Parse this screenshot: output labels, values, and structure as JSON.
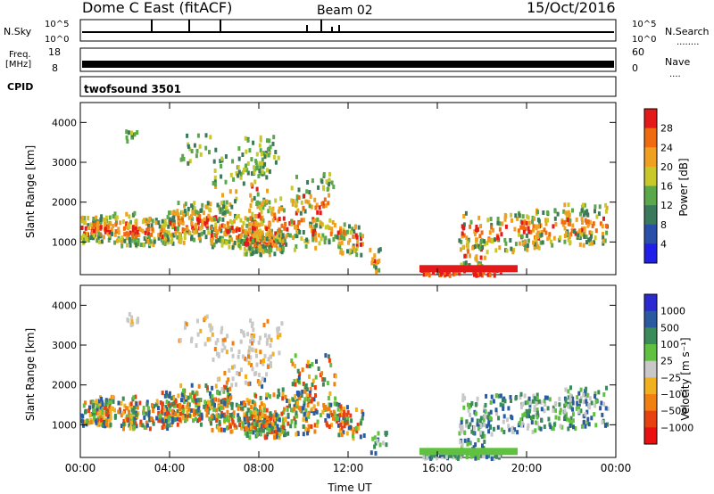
{
  "header": {
    "title": "Dome C East (fitACF)",
    "beam": "Beam 02",
    "date": "15/Oct/2016"
  },
  "panels": {
    "sky": {
      "left_label": "N.Sky",
      "left_ticks": [
        "10^5",
        "10^0"
      ],
      "right_ticks": [
        "10^5",
        "10^0"
      ],
      "right_label": "N.Search",
      "right_dots": "........"
    },
    "freq": {
      "left_label_1": "Freq.",
      "left_label_2": "[MHz]",
      "left_ticks": [
        "18",
        "8"
      ],
      "right_ticks": [
        "60",
        "0"
      ],
      "right_label": "Nave",
      "right_dots": "...."
    },
    "cpid": {
      "label": "CPID",
      "program": "twofsound 3501"
    }
  },
  "colors": {
    "power_scale": [
      "#1f1fe8",
      "#2a4fa8",
      "#3a7a5a",
      "#5aa84a",
      "#c8c82a",
      "#f0a020",
      "#f06a10",
      "#e41a1a"
    ],
    "velocity_scale": [
      "#2a2ad0",
      "#2a5aa0",
      "#3a8a5a",
      "#60c040",
      "#c8c8c8",
      "#f0b020",
      "#f08010",
      "#e84010",
      "#e81010"
    ]
  },
  "chart_data": [
    {
      "type": "heatmap",
      "name": "power",
      "xlabel": "",
      "ylabel": "Slant Range [km]",
      "x_ticks": [
        "00:00",
        "04:00",
        "08:00",
        "12:00",
        "16:00",
        "20:00",
        "00:00"
      ],
      "xlim_hours": [
        0,
        24
      ],
      "y_ticks": [
        1000,
        2000,
        3000,
        4000
      ],
      "ylim": [
        180,
        4500
      ],
      "colorbar_label": "Power [dB]",
      "colorbar_ticks": [
        "4",
        "8",
        "12",
        "16",
        "20",
        "24",
        "28"
      ],
      "clim": [
        0,
        30
      ]
    },
    {
      "type": "heatmap",
      "name": "velocity",
      "xlabel": "Time UT",
      "ylabel": "Slant Range [km]",
      "x_ticks": [
        "00:00",
        "04:00",
        "08:00",
        "12:00",
        "16:00",
        "20:00",
        "00:00"
      ],
      "xlim_hours": [
        0,
        24
      ],
      "y_ticks": [
        1000,
        2000,
        3000,
        4000
      ],
      "ylim": [
        180,
        4500
      ],
      "colorbar_label": "Velocity [m s⁻¹]",
      "colorbar_ticks": [
        "1000",
        "500",
        "100",
        "25",
        "−25",
        "−100",
        "−500",
        "−1000"
      ],
      "clim": [
        -1200,
        1200
      ]
    }
  ]
}
